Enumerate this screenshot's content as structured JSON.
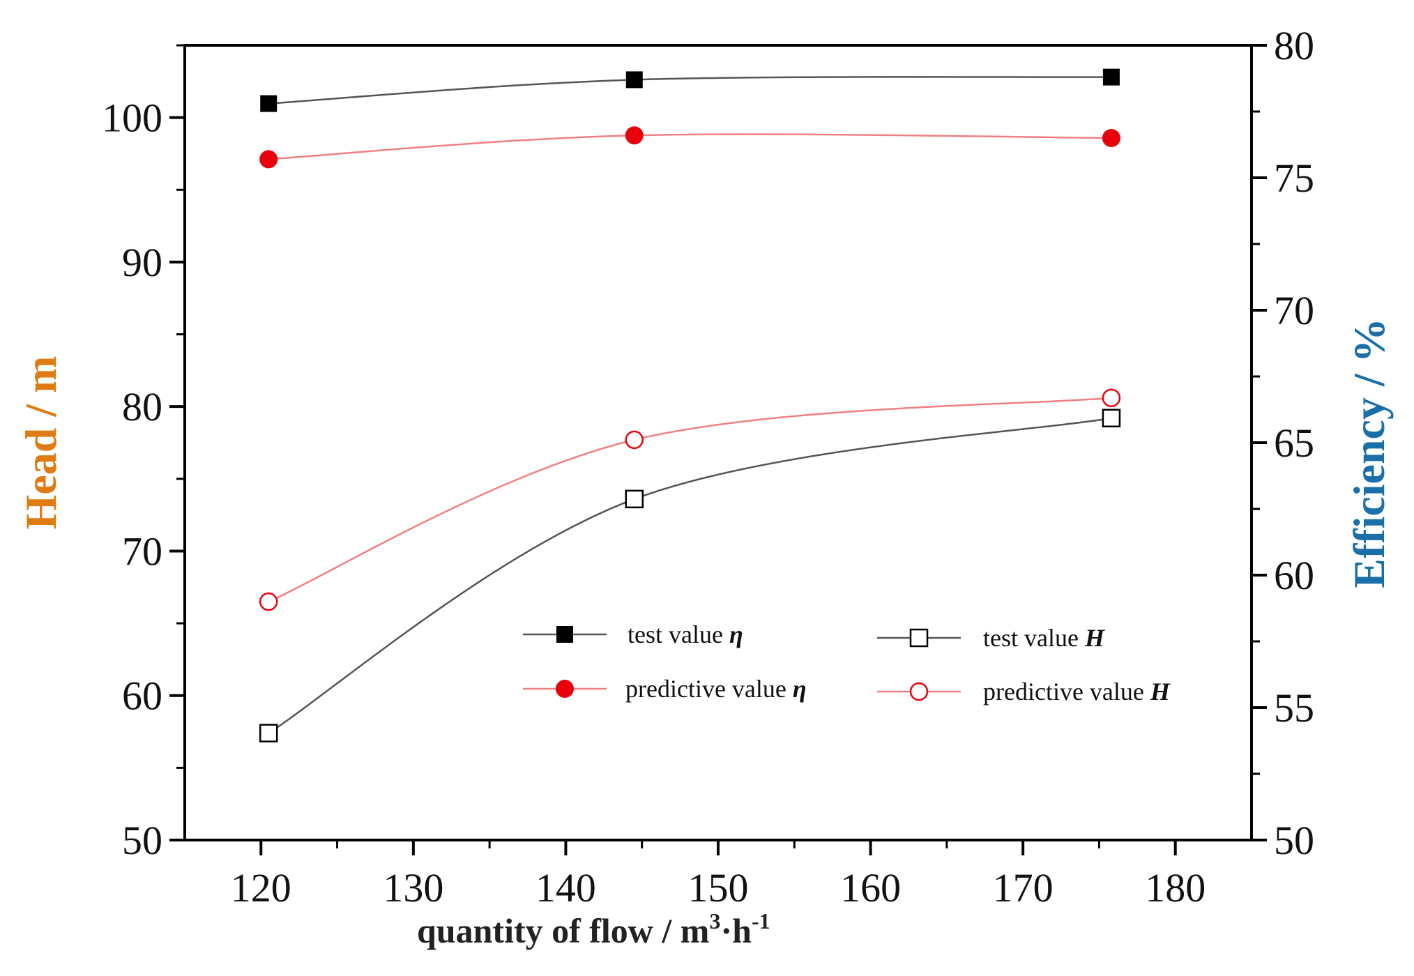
{
  "chart_data": {
    "type": "line",
    "title": "",
    "xlabel": "quantity of flow / m³·h⁻¹",
    "xlabel_parts": {
      "main": "quantity of flow  / m",
      "sup1": "3",
      "mid": "·h",
      "sup2": "-1"
    },
    "ylabel_left": "Head / m",
    "ylabel_right": "Efficiency / %",
    "xlim": [
      115,
      185
    ],
    "xticks": [
      120,
      130,
      140,
      150,
      160,
      170,
      180
    ],
    "ylim_left": [
      50,
      105
    ],
    "yticks_left": [
      50,
      60,
      70,
      80,
      90,
      100
    ],
    "ylim_right": [
      50,
      80
    ],
    "yticks_right": [
      50,
      55,
      60,
      65,
      70,
      75,
      80
    ],
    "grid": false,
    "legend_position": "center-right",
    "colors": {
      "black": "#000000",
      "red": "#e8000b",
      "axis_title_left": "#e07b14",
      "axis_title_right": "#1a6fa8",
      "line_black": "#555555",
      "line_red": "#f08080"
    },
    "series": [
      {
        "name": "test value η",
        "label_text": "test value ",
        "label_symbol": "η",
        "axis": "right",
        "marker": "filled-square",
        "color": "#000000",
        "x": [
          120.5,
          144.5,
          175.8
        ],
        "values": [
          77.8,
          78.7,
          78.8
        ]
      },
      {
        "name": "predictive value η",
        "label_text": "predictive value ",
        "label_symbol": "η",
        "axis": "right",
        "marker": "filled-circle",
        "color": "#e8000b",
        "x": [
          120.5,
          144.5,
          175.8
        ],
        "values": [
          75.7,
          76.6,
          76.5
        ]
      },
      {
        "name": "test value H",
        "label_text": "test value ",
        "label_symbol": "H",
        "axis": "left",
        "marker": "open-square",
        "color": "#000000",
        "x": [
          120.5,
          144.5,
          175.8
        ],
        "values": [
          57.4,
          73.6,
          79.2
        ]
      },
      {
        "name": "predictive value H",
        "label_text": "predictive value ",
        "label_symbol": "H",
        "axis": "left",
        "marker": "open-circle",
        "color": "#e8000b",
        "x": [
          120.5,
          144.5,
          175.8
        ],
        "values": [
          66.5,
          77.7,
          80.6
        ]
      }
    ]
  }
}
